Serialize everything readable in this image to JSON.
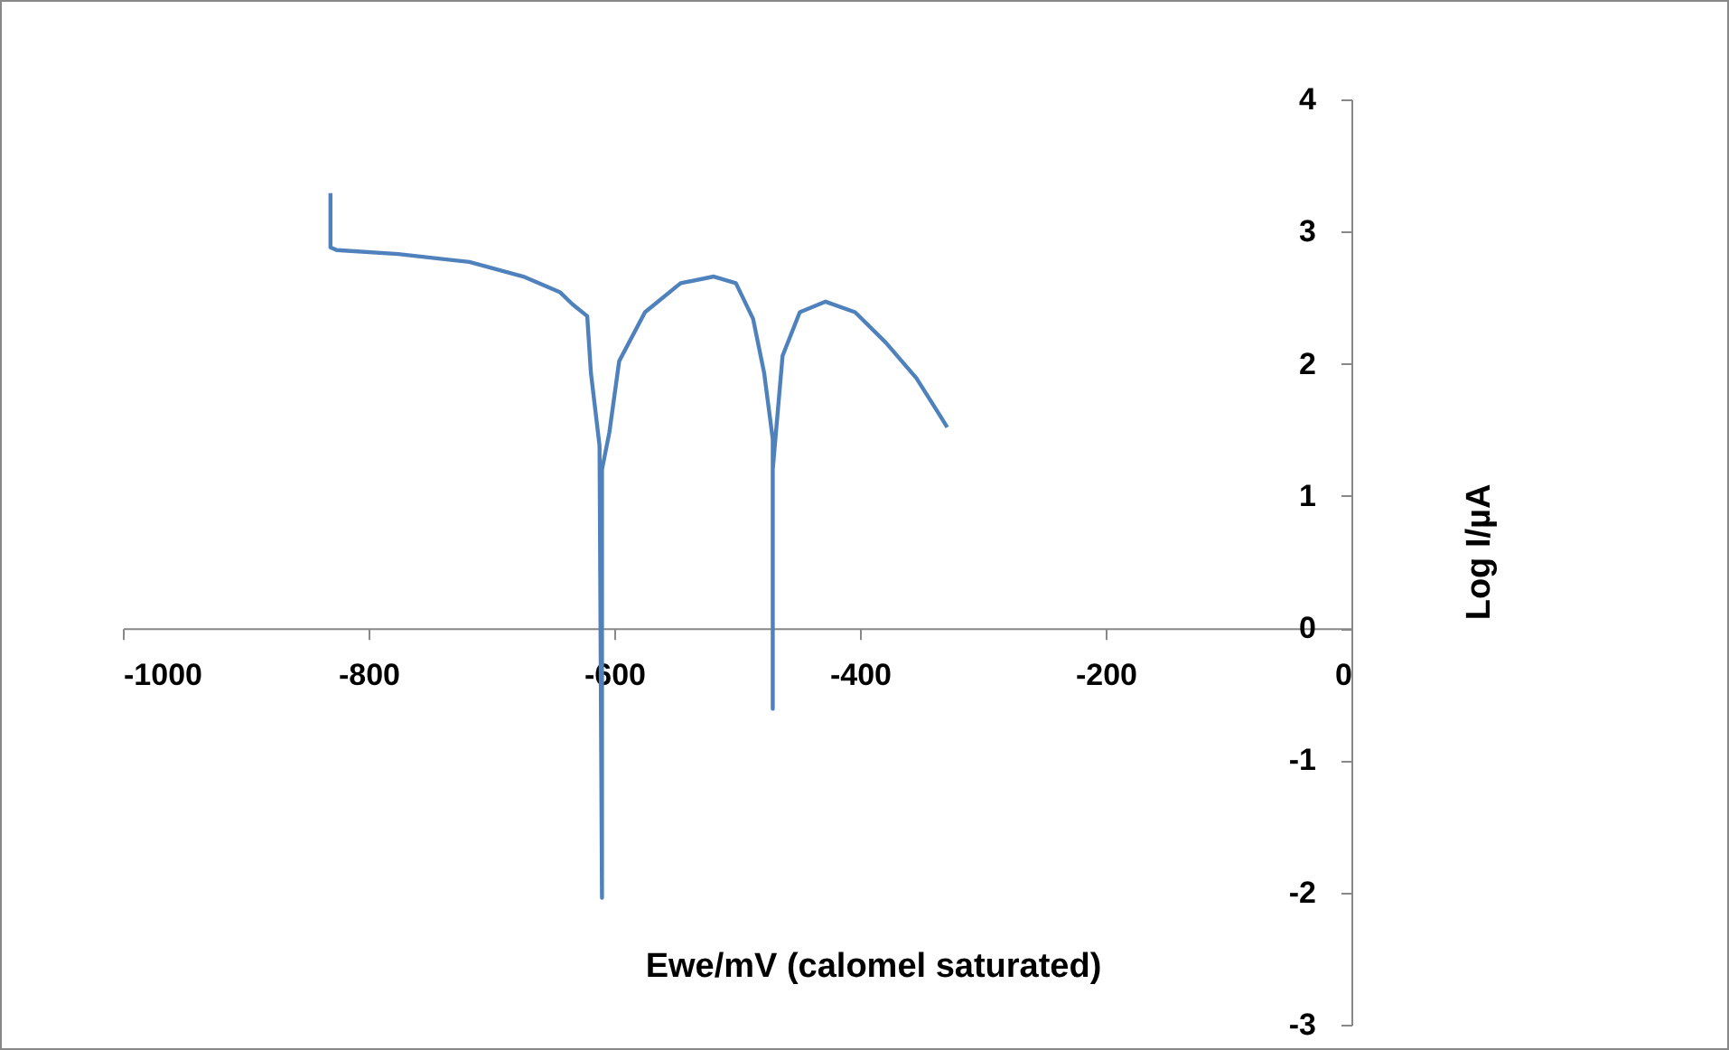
{
  "chart_data": {
    "type": "line",
    "xlabel": "Ewe/mV (calomel saturated)",
    "ylabel": "Log I/µA",
    "x": [
      -831,
      -831,
      -826,
      -776,
      -718,
      -674,
      -644,
      -634,
      -622,
      -619,
      -612,
      -610,
      -610,
      -604,
      -596,
      -575,
      -546,
      -519,
      -501,
      -487,
      -478,
      -471,
      -471,
      -471,
      -463,
      -449,
      -428,
      -404,
      -379,
      -354,
      -335,
      -329
    ],
    "series": [
      {
        "color": "#4f81bd",
        "values": [
          3.29,
          2.88,
          2.86,
          2.83,
          2.77,
          2.66,
          2.54,
          2.45,
          2.36,
          1.93,
          1.38,
          -2.04,
          1.2,
          1.48,
          2.02,
          2.39,
          2.61,
          2.66,
          2.61,
          2.34,
          1.93,
          1.43,
          -0.61,
          1.2,
          2.06,
          2.39,
          2.47,
          2.39,
          2.16,
          1.89,
          1.61,
          1.52
        ]
      }
    ],
    "xlim": [
      -1000,
      0
    ],
    "xticks": [
      {
        "value": -1000,
        "label": "-1000"
      },
      {
        "value": -800,
        "label": "-800"
      },
      {
        "value": -600,
        "label": "-600"
      },
      {
        "value": -400,
        "label": "-400"
      },
      {
        "value": -200,
        "label": "-200"
      },
      0
    ],
    "ylim": [
      -3,
      4
    ],
    "yticks": [
      {
        "value": -3,
        "label": "-3"
      },
      {
        "value": -2,
        "label": "-2"
      },
      {
        "value": -1,
        "label": "-1"
      },
      0,
      1,
      2,
      3,
      4
    ],
    "grid": false,
    "legend": false,
    "marker": "none",
    "line_style": "solid"
  }
}
